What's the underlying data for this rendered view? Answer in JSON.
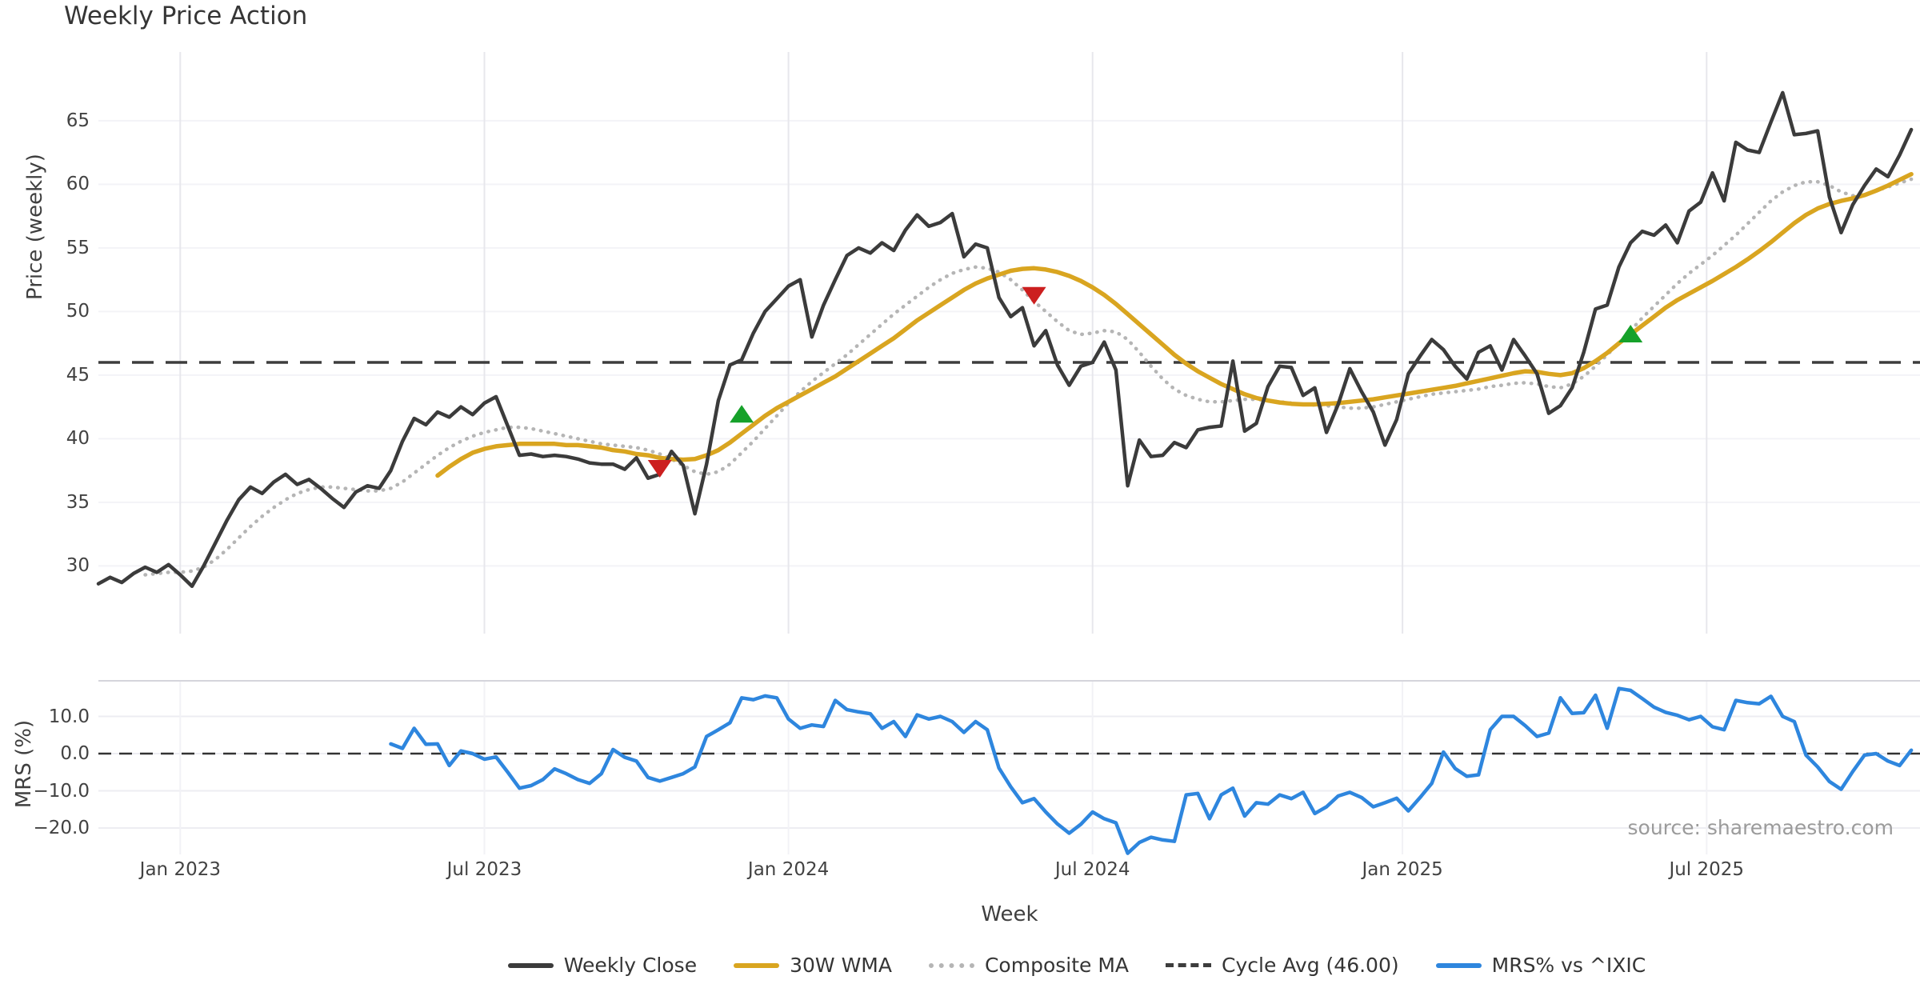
{
  "title": "Weekly Price Action",
  "source_note": "source: sharemaestro.com",
  "xlabel": "Week",
  "colors": {
    "weekly_close": "#3b3b3b",
    "wma_30w": "#d9a520",
    "composite_ma": "#b5b5b5",
    "cycle_avg": "#3d3d3d",
    "mrs_line": "#2e86de",
    "buy_marker": "#16a12a",
    "sell_marker": "#cc1f1f",
    "grid_light": "#ededf2",
    "grid_vertical": "#e7e7ec",
    "panel_border": "#d5d5dc"
  },
  "legend": {
    "items": [
      {
        "label": "Weekly Close",
        "style": "solid",
        "color": "#3b3b3b"
      },
      {
        "label": "30W WMA",
        "style": "solid",
        "color": "#d9a520"
      },
      {
        "label": "Composite MA",
        "style": "dotted",
        "color": "#b5b5b5"
      },
      {
        "label": "Cycle Avg (46.00)",
        "style": "dashed",
        "color": "#3d3d3d"
      },
      {
        "label": "MRS% vs ^IXIC",
        "style": "solid",
        "color": "#2e86de"
      }
    ]
  },
  "chart_data": [
    {
      "type": "line",
      "panel": "price",
      "title": "Weekly Price Action",
      "ylabel": "Price (weekly)",
      "yticks": [
        30,
        35,
        40,
        45,
        50,
        55,
        60,
        65
      ],
      "ytick_labels": [
        "30",
        "35",
        "40",
        "45",
        "50",
        "55",
        "60",
        "65"
      ],
      "ylim": [
        24.7,
        70.4
      ],
      "grid": true,
      "x_axis": {
        "tick_labels": [
          "Jan 2023",
          "Jul 2023",
          "Jan 2024",
          "Jul 2024",
          "Jan 2025",
          "Jul 2025"
        ],
        "tick_weeks": [
          7,
          33,
          59,
          85,
          111.5,
          137.5
        ],
        "xlim_weeks": [
          0,
          155.7
        ]
      },
      "series": [
        {
          "name": "Weekly Close",
          "color": "#3b3b3b",
          "style": "solid",
          "width": 4.5,
          "start_week": 0,
          "values": [
            28.6,
            29.1,
            28.7,
            29.4,
            29.9,
            29.5,
            30.1,
            29.3,
            28.4,
            30.0,
            31.8,
            33.6,
            35.2,
            36.2,
            35.7,
            36.6,
            37.2,
            36.4,
            36.8,
            36.1,
            35.3,
            34.6,
            35.8,
            36.3,
            36.1,
            37.5,
            39.8,
            41.6,
            41.1,
            42.1,
            41.7,
            42.5,
            41.9,
            42.8,
            43.3,
            41.0,
            38.7,
            38.8,
            38.6,
            38.7,
            38.6,
            38.4,
            38.1,
            38.0,
            38.0,
            37.6,
            38.5,
            36.9,
            37.2,
            39.0,
            37.9,
            34.1,
            38.0,
            43.0,
            45.8,
            46.2,
            48.3,
            50.0,
            51.0,
            52.0,
            52.5,
            48.0,
            50.5,
            52.5,
            54.4,
            55.0,
            54.6,
            55.4,
            54.8,
            56.4,
            57.6,
            56.7,
            57.0,
            57.7,
            54.3,
            55.3,
            55.0,
            51.1,
            49.6,
            50.3,
            47.3,
            48.5,
            45.8,
            44.2,
            45.7,
            46.0,
            47.6,
            45.4,
            36.3,
            39.9,
            38.6,
            38.7,
            39.7,
            39.3,
            40.7,
            40.9,
            41.0,
            46.1,
            40.6,
            41.2,
            44.1,
            45.7,
            45.6,
            43.4,
            44.0,
            40.5,
            42.7,
            45.5,
            43.7,
            42.1,
            39.5,
            41.5,
            45.1,
            46.5,
            47.8,
            47.0,
            45.7,
            44.7,
            46.8,
            47.3,
            45.4,
            47.8,
            46.5,
            45.1,
            42.0,
            42.6,
            44.0,
            46.8,
            50.2,
            50.5,
            53.5,
            55.4,
            56.3,
            56.0,
            56.8,
            55.4,
            57.9,
            58.6,
            60.9,
            58.7,
            63.3,
            62.7,
            62.5,
            64.9,
            67.2,
            63.9,
            64.0,
            64.2,
            59.0,
            56.2,
            58.4,
            59.9,
            61.2,
            60.6,
            62.3,
            64.3
          ]
        },
        {
          "name": "30W WMA",
          "color": "#d9a520",
          "style": "solid",
          "width": 5.5,
          "start_week": 29,
          "values": [
            37.1,
            37.8,
            38.4,
            38.9,
            39.2,
            39.4,
            39.5,
            39.6,
            39.6,
            39.6,
            39.6,
            39.5,
            39.5,
            39.4,
            39.3,
            39.1,
            39.0,
            38.8,
            38.7,
            38.5,
            38.4,
            38.35,
            38.4,
            38.7,
            39.1,
            39.7,
            40.4,
            41.1,
            41.8,
            42.4,
            42.9,
            43.4,
            43.9,
            44.4,
            44.9,
            45.5,
            46.1,
            46.7,
            47.3,
            47.9,
            48.6,
            49.3,
            49.9,
            50.5,
            51.1,
            51.7,
            52.2,
            52.6,
            52.9,
            53.2,
            53.35,
            53.4,
            53.3,
            53.1,
            52.8,
            52.4,
            51.9,
            51.3,
            50.6,
            49.8,
            49.0,
            48.2,
            47.4,
            46.6,
            45.9,
            45.3,
            44.8,
            44.3,
            43.9,
            43.5,
            43.2,
            43.0,
            42.85,
            42.75,
            42.7,
            42.7,
            42.75,
            42.8,
            42.9,
            43.0,
            43.1,
            43.25,
            43.4,
            43.55,
            43.7,
            43.85,
            44.0,
            44.15,
            44.35,
            44.55,
            44.75,
            44.95,
            45.15,
            45.3,
            45.25,
            45.1,
            45.0,
            45.15,
            45.55,
            46.1,
            46.75,
            47.5,
            48.2,
            48.9,
            49.6,
            50.3,
            50.9,
            51.4,
            51.9,
            52.4,
            52.95,
            53.5,
            54.1,
            54.75,
            55.45,
            56.2,
            56.95,
            57.6,
            58.1,
            58.45,
            58.7,
            58.9,
            59.15,
            59.5,
            59.9,
            60.35,
            60.8
          ]
        },
        {
          "name": "Composite MA",
          "color": "#b5b5b5",
          "style": "dotted",
          "width": 4.5,
          "start_week": 4,
          "values": [
            29.3,
            29.4,
            29.5,
            29.5,
            29.6,
            29.9,
            30.5,
            31.3,
            32.2,
            33.1,
            33.9,
            34.6,
            35.2,
            35.7,
            36.0,
            36.2,
            36.2,
            36.1,
            36.0,
            35.9,
            35.9,
            36.1,
            36.6,
            37.3,
            38.0,
            38.7,
            39.3,
            39.8,
            40.2,
            40.5,
            40.7,
            40.9,
            40.9,
            40.8,
            40.6,
            40.4,
            40.2,
            40.0,
            39.8,
            39.6,
            39.5,
            39.4,
            39.3,
            39.1,
            38.8,
            38.4,
            37.9,
            37.4,
            37.2,
            37.4,
            38.0,
            38.9,
            39.8,
            40.8,
            41.8,
            42.8,
            43.7,
            44.5,
            45.2,
            45.9,
            46.6,
            47.4,
            48.2,
            49.0,
            49.8,
            50.5,
            51.2,
            51.9,
            52.5,
            53.0,
            53.3,
            53.5,
            53.4,
            53.1,
            52.5,
            51.7,
            50.8,
            50.0,
            49.2,
            48.5,
            48.2,
            48.3,
            48.5,
            48.4,
            47.8,
            46.8,
            45.7,
            44.7,
            43.9,
            43.4,
            43.1,
            42.9,
            42.9,
            43.0,
            43.1,
            43.1,
            43.0,
            42.9,
            42.8,
            42.7,
            42.65,
            42.6,
            42.5,
            42.4,
            42.4,
            42.5,
            42.7,
            42.9,
            43.1,
            43.3,
            43.5,
            43.6,
            43.7,
            43.8,
            43.9,
            44.1,
            44.2,
            44.35,
            44.4,
            44.3,
            44.1,
            44.0,
            44.3,
            44.9,
            45.7,
            46.6,
            47.5,
            48.5,
            49.5,
            50.4,
            51.3,
            52.2,
            53.0,
            53.7,
            54.4,
            55.2,
            56.0,
            56.9,
            57.8,
            58.7,
            59.4,
            59.9,
            60.2,
            60.2,
            59.9,
            59.4,
            59.1,
            59.2,
            59.5,
            59.8,
            60.1,
            60.4
          ]
        },
        {
          "name": "Cycle Avg (46.00)",
          "color": "#3d3d3d",
          "style": "dashed",
          "width": 3.5,
          "constant": 46.0
        }
      ],
      "signals": {
        "buy": {
          "color": "#16a12a",
          "shape": "triangle-up",
          "points": [
            {
              "week": 55,
              "price": 41.9
            },
            {
              "week": 131,
              "price": 48.2
            }
          ]
        },
        "sell": {
          "color": "#cc1f1f",
          "shape": "triangle-down",
          "points": [
            {
              "week": 48,
              "price": 37.7
            },
            {
              "week": 80,
              "price": 51.3
            }
          ]
        }
      }
    },
    {
      "type": "line",
      "panel": "mrs",
      "ylabel": "MRS (%)",
      "yticks": [
        10,
        0,
        -10,
        -20
      ],
      "ytick_labels": [
        "10.0",
        "0.0",
        "−10.0",
        "−20.0"
      ],
      "ylim": [
        -27.1,
        19.6
      ],
      "grid": true,
      "zero_line": {
        "value": 0.0,
        "style": "dashed",
        "color": "#333333"
      },
      "series": [
        {
          "name": "MRS% vs ^IXIC",
          "color": "#2e86de",
          "style": "solid",
          "width": 4.5,
          "start_week": 25,
          "values": [
            2.6,
            1.4,
            6.8,
            2.5,
            2.6,
            -3.2,
            0.7,
            0.0,
            -1.5,
            -0.9,
            -5.0,
            -9.3,
            -8.6,
            -7.0,
            -4.1,
            -5.4,
            -7.0,
            -8.0,
            -5.4,
            1.1,
            -1.0,
            -2.0,
            -6.4,
            -7.4,
            -6.4,
            -5.4,
            -3.6,
            4.6,
            6.4,
            8.3,
            15.0,
            14.5,
            15.5,
            15.0,
            9.3,
            6.8,
            7.7,
            7.3,
            14.3,
            11.8,
            11.2,
            10.7,
            6.8,
            8.6,
            4.6,
            10.4,
            9.3,
            10.0,
            8.6,
            5.7,
            8.6,
            6.4,
            -3.9,
            -8.9,
            -13.2,
            -12.1,
            -15.7,
            -18.9,
            -21.4,
            -19.0,
            -15.7,
            -17.5,
            -18.6,
            -26.8,
            -23.9,
            -22.5,
            -23.2,
            -23.6,
            -11.1,
            -10.7,
            -17.5,
            -11.1,
            -9.3,
            -16.8,
            -13.2,
            -13.6,
            -11.1,
            -12.1,
            -10.4,
            -16.1,
            -14.3,
            -11.4,
            -10.4,
            -11.8,
            -14.3,
            -13.2,
            -12.0,
            -15.4,
            -11.8,
            -8.0,
            0.4,
            -4.0,
            -6.1,
            -5.7,
            6.4,
            10.0,
            10.0,
            7.5,
            4.6,
            5.5,
            15.0,
            10.8,
            11.0,
            15.7,
            6.8,
            17.5,
            17.0,
            14.8,
            12.5,
            11.1,
            10.3,
            9.1,
            10.0,
            7.2,
            6.4,
            14.3,
            13.7,
            13.4,
            15.4,
            10.0,
            8.6,
            -0.4,
            -3.6,
            -7.5,
            -9.6,
            -4.8,
            -0.4,
            0.0,
            -2.0,
            -3.2,
            0.9
          ]
        }
      ]
    }
  ]
}
